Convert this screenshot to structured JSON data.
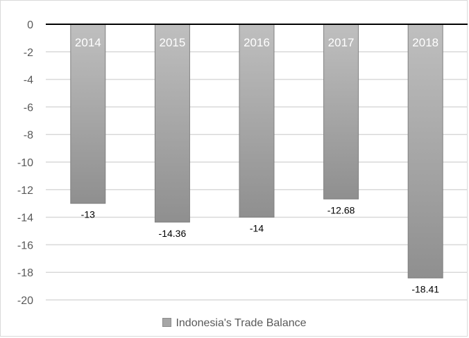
{
  "chart_data": {
    "type": "bar",
    "title": "",
    "categories": [
      "2014",
      "2015",
      "2016",
      "2017",
      "2018"
    ],
    "series": [
      {
        "name": "Indonesia's Trade Balance",
        "values": [
          -13,
          -14.36,
          -14,
          -12.68,
          -18.41
        ]
      }
    ],
    "data_labels": [
      "-13",
      "-14.36",
      "-14",
      "-12.68",
      "-18.41"
    ],
    "ylim": [
      -20,
      0
    ],
    "yticks": [
      0,
      -2,
      -4,
      -6,
      -8,
      -10,
      -12,
      -14,
      -16,
      -18,
      -20
    ],
    "ytick_labels": [
      "0",
      "-2",
      "-4",
      "-6",
      "-8",
      "-10",
      "-12",
      "-14",
      "-16",
      "-18",
      "-20"
    ],
    "xlabel": "",
    "ylabel": "",
    "grid": true,
    "legend_position": "bottom",
    "colors": {
      "bar_top": "#bfbfbf",
      "bar_bottom": "#8f8f8f",
      "bar_edge": "#808080",
      "grid": "#d9d9d9",
      "axis": "#000000",
      "category_text": "#ffffff"
    }
  }
}
